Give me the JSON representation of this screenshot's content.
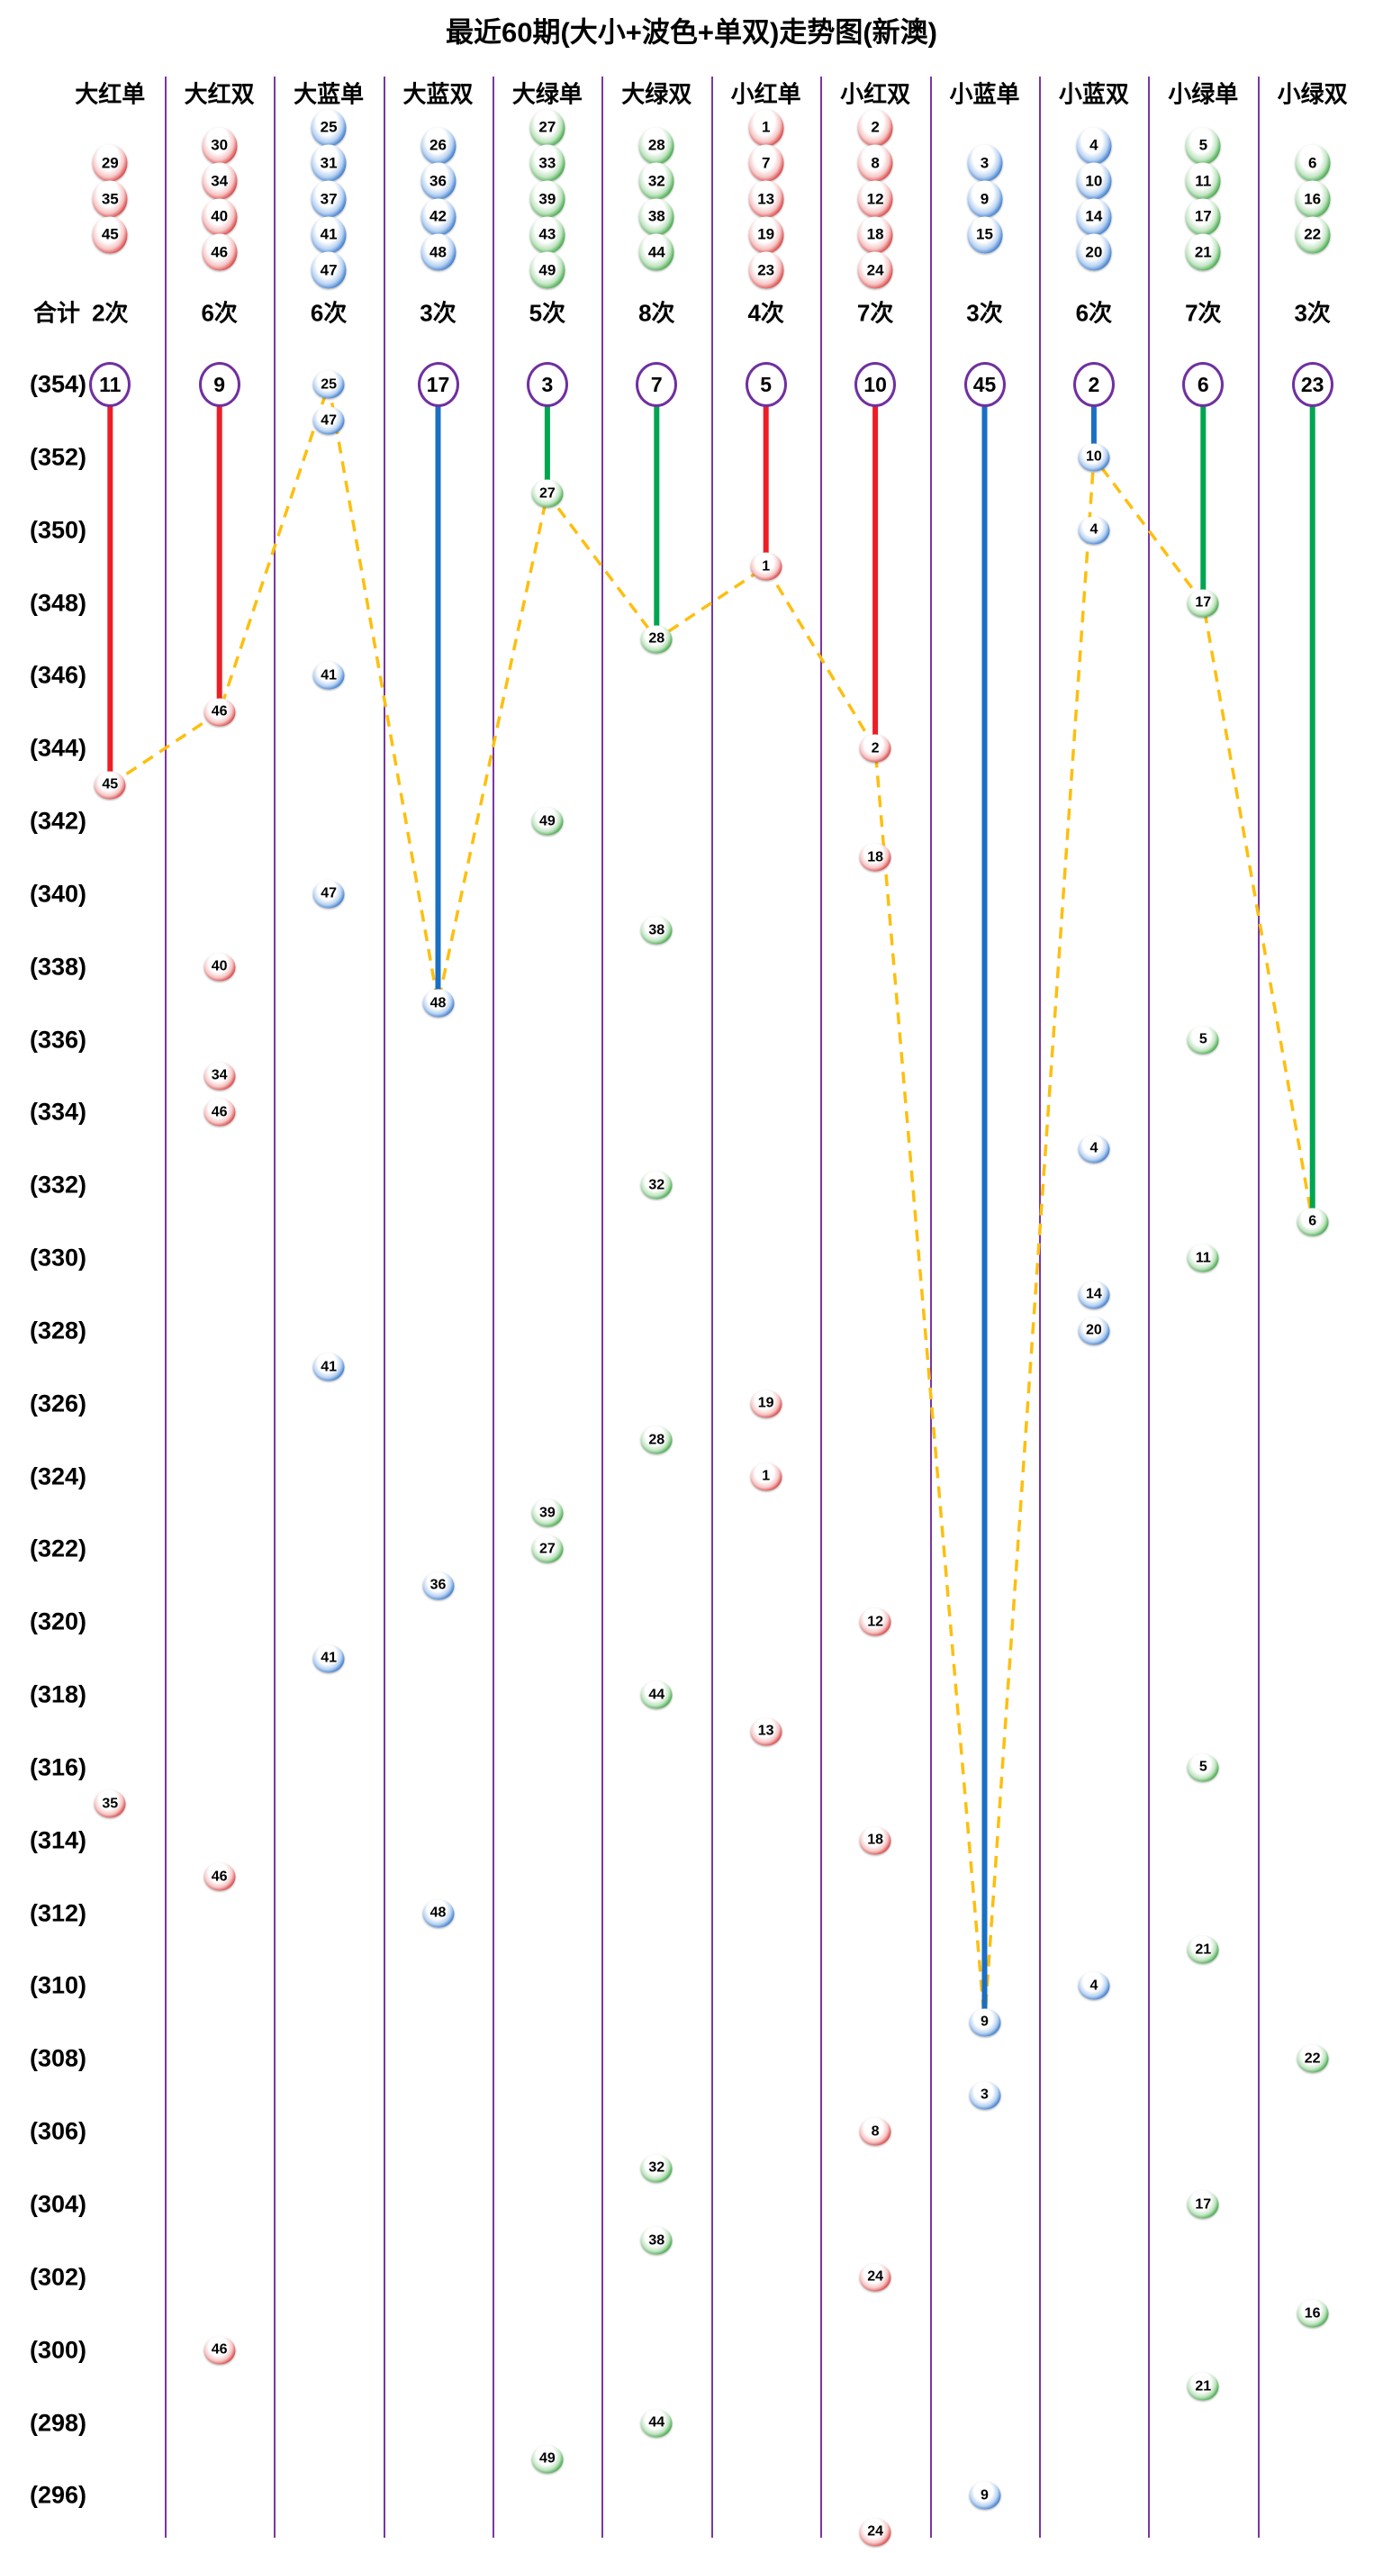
{
  "title": "最近60期(大小+波色+单双)走势图(新澳)",
  "summary_label": "合计",
  "count_suffix": "次",
  "colors": {
    "separator": "#7a36a2",
    "circle_border": "#7030a0",
    "trend_dash": "#fdbf0f",
    "drop_red": "#ee1c25",
    "drop_blue": "#1a6fc4",
    "drop_green": "#00a550"
  },
  "columns": [
    {
      "label": "大红单",
      "group": "red",
      "legend": [
        29,
        35,
        45
      ],
      "count": 2,
      "missing": 11
    },
    {
      "label": "大红双",
      "group": "red",
      "legend": [
        30,
        34,
        40,
        46
      ],
      "count": 6,
      "missing": 9
    },
    {
      "label": "大蓝单",
      "group": "blue",
      "legend": [
        25,
        31,
        37,
        41,
        47
      ],
      "count": 6,
      "missing": 0
    },
    {
      "label": "大蓝双",
      "group": "blue",
      "legend": [
        26,
        36,
        42,
        48
      ],
      "count": 3,
      "missing": 17
    },
    {
      "label": "大绿单",
      "group": "green",
      "legend": [
        27,
        33,
        39,
        43,
        49
      ],
      "count": 5,
      "missing": 3
    },
    {
      "label": "大绿双",
      "group": "green",
      "legend": [
        28,
        32,
        38,
        44
      ],
      "count": 8,
      "missing": 7
    },
    {
      "label": "小红单",
      "group": "red",
      "legend": [
        1,
        7,
        13,
        19,
        23
      ],
      "count": 4,
      "missing": 5
    },
    {
      "label": "小红双",
      "group": "red",
      "legend": [
        2,
        8,
        12,
        18,
        24
      ],
      "count": 7,
      "missing": 10
    },
    {
      "label": "小蓝单",
      "group": "blue",
      "legend": [
        3,
        9,
        15
      ],
      "count": 3,
      "missing": 45
    },
    {
      "label": "小蓝双",
      "group": "blue",
      "legend": [
        4,
        10,
        14,
        20
      ],
      "count": 6,
      "missing": 2
    },
    {
      "label": "小绿单",
      "group": "green",
      "legend": [
        5,
        11,
        17,
        21
      ],
      "count": 7,
      "missing": 6
    },
    {
      "label": "小绿双",
      "group": "green",
      "legend": [
        6,
        16,
        22
      ],
      "count": 3,
      "missing": 23
    }
  ],
  "row_labels": [
    354,
    352,
    350,
    348,
    346,
    344,
    342,
    340,
    338,
    336,
    334,
    332,
    330,
    328,
    326,
    324,
    322,
    320,
    318,
    316,
    314,
    312,
    310,
    308,
    306,
    304,
    302,
    300,
    298,
    296
  ],
  "chart_data": {
    "type": "scatter",
    "title": "最近60期(大小+波色+单双)走势图(新澳)",
    "y_axis": {
      "top_period": 354,
      "bottom_period": 295,
      "labeled_step": 2,
      "label_format": "(n)"
    },
    "x_categories": [
      "大红单",
      "大红双",
      "大蓝单",
      "大蓝双",
      "大绿单",
      "大绿双",
      "小红单",
      "小红双",
      "小蓝单",
      "小蓝双",
      "小绿单",
      "小绿双"
    ],
    "column_totals": [
      2,
      6,
      6,
      3,
      5,
      8,
      4,
      7,
      3,
      6,
      7,
      3
    ],
    "column_missing_counts": [
      11,
      9,
      0,
      17,
      3,
      7,
      5,
      10,
      45,
      2,
      6,
      23
    ],
    "legend_note": "dashed yellow line connects the most recent ball of each column left to right; solid colored line drops from missing-count circle to that column's most recent ball",
    "points": [
      {
        "period": 354,
        "number": 25,
        "col": 2
      },
      {
        "period": 353,
        "number": 47,
        "col": 2
      },
      {
        "period": 352,
        "number": 10,
        "col": 9
      },
      {
        "period": 351,
        "number": 27,
        "col": 4
      },
      {
        "period": 350,
        "number": 4,
        "col": 9
      },
      {
        "period": 349,
        "number": 1,
        "col": 6
      },
      {
        "period": 348,
        "number": 17,
        "col": 10
      },
      {
        "period": 347,
        "number": 28,
        "col": 5
      },
      {
        "period": 346,
        "number": 41,
        "col": 2
      },
      {
        "period": 345,
        "number": 46,
        "col": 1
      },
      {
        "period": 344,
        "number": 2,
        "col": 7
      },
      {
        "period": 343,
        "number": 45,
        "col": 0
      },
      {
        "period": 342,
        "number": 49,
        "col": 4
      },
      {
        "period": 341,
        "number": 18,
        "col": 7
      },
      {
        "period": 340,
        "number": 47,
        "col": 2
      },
      {
        "period": 339,
        "number": 38,
        "col": 5
      },
      {
        "period": 338,
        "number": 40,
        "col": 1
      },
      {
        "period": 337,
        "number": 48,
        "col": 3
      },
      {
        "period": 336,
        "number": 5,
        "col": 10
      },
      {
        "period": 335,
        "number": 34,
        "col": 1
      },
      {
        "period": 334,
        "number": 46,
        "col": 1
      },
      {
        "period": 333,
        "number": 4,
        "col": 9
      },
      {
        "period": 332,
        "number": 32,
        "col": 5
      },
      {
        "period": 331,
        "number": 6,
        "col": 11
      },
      {
        "period": 330,
        "number": 11,
        "col": 10
      },
      {
        "period": 329,
        "number": 14,
        "col": 9
      },
      {
        "period": 328,
        "number": 20,
        "col": 9
      },
      {
        "period": 327,
        "number": 41,
        "col": 2
      },
      {
        "period": 326,
        "number": 19,
        "col": 6
      },
      {
        "period": 325,
        "number": 28,
        "col": 5
      },
      {
        "period": 324,
        "number": 1,
        "col": 6
      },
      {
        "period": 323,
        "number": 39,
        "col": 4
      },
      {
        "period": 322,
        "number": 27,
        "col": 4
      },
      {
        "period": 321,
        "number": 36,
        "col": 3
      },
      {
        "period": 320,
        "number": 12,
        "col": 7
      },
      {
        "period": 319,
        "number": 41,
        "col": 2
      },
      {
        "period": 318,
        "number": 44,
        "col": 5
      },
      {
        "period": 317,
        "number": 13,
        "col": 6
      },
      {
        "period": 316,
        "number": 5,
        "col": 10
      },
      {
        "period": 315,
        "number": 35,
        "col": 0
      },
      {
        "period": 314,
        "number": 18,
        "col": 7
      },
      {
        "period": 313,
        "number": 46,
        "col": 1
      },
      {
        "period": 312,
        "number": 48,
        "col": 3
      },
      {
        "period": 311,
        "number": 21,
        "col": 10
      },
      {
        "period": 310,
        "number": 4,
        "col": 9
      },
      {
        "period": 309,
        "number": 9,
        "col": 8
      },
      {
        "period": 308,
        "number": 22,
        "col": 11
      },
      {
        "period": 307,
        "number": 3,
        "col": 8
      },
      {
        "period": 306,
        "number": 8,
        "col": 7
      },
      {
        "period": 305,
        "number": 32,
        "col": 5
      },
      {
        "period": 304,
        "number": 17,
        "col": 10
      },
      {
        "period": 303,
        "number": 38,
        "col": 5
      },
      {
        "period": 302,
        "number": 24,
        "col": 7
      },
      {
        "period": 301,
        "number": 16,
        "col": 11
      },
      {
        "period": 300,
        "number": 46,
        "col": 1
      },
      {
        "period": 299,
        "number": 21,
        "col": 10
      },
      {
        "period": 298,
        "number": 44,
        "col": 5
      },
      {
        "period": 297,
        "number": 49,
        "col": 4
      },
      {
        "period": 296,
        "number": 9,
        "col": 8
      },
      {
        "period": 295,
        "number": 24,
        "col": 7
      }
    ]
  }
}
